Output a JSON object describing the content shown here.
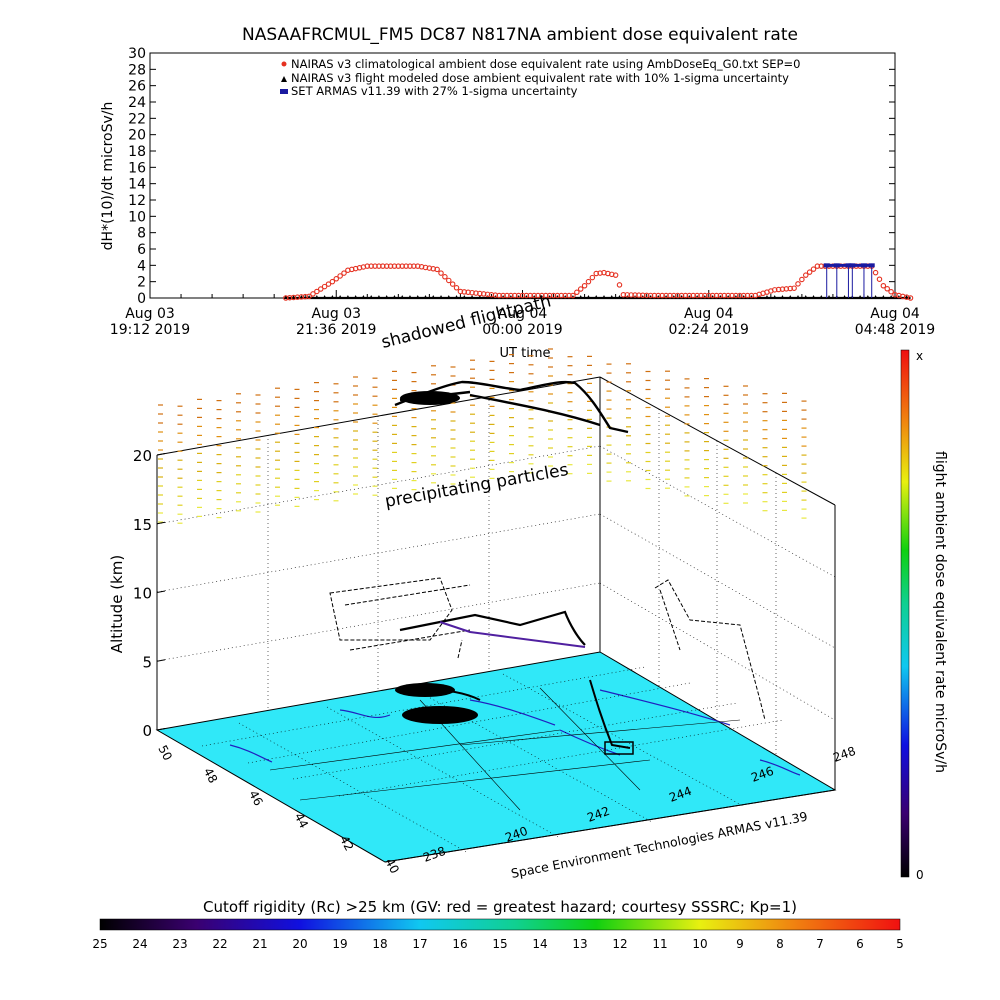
{
  "chart_data": [
    {
      "type": "line",
      "title": "NASAAFRCMUL_FM5 DC87 N817NA ambient dose equivalent rate",
      "ylabel": "dH*(10)/dt microSv/h",
      "xlabel": "UT time",
      "ylim": [
        0,
        30
      ],
      "yticks": [
        0,
        2,
        4,
        6,
        8,
        10,
        12,
        14,
        16,
        18,
        20,
        22,
        24,
        26,
        28,
        30
      ],
      "xticks": [
        {
          "line1": "Aug 03",
          "line2": "19:12 2019"
        },
        {
          "line1": "Aug 03",
          "line2": "21:36 2019"
        },
        {
          "line1": "Aug 04",
          "line2": "00:00 2019"
        },
        {
          "line1": "Aug 04",
          "line2": "02:24 2019"
        },
        {
          "line1": "Aug 04",
          "line2": "04:48 2019"
        }
      ],
      "legend_position": "top-right",
      "series": [
        {
          "name": "NAIRAS v3 climatological ambient dose equivalent rate using AmbDoseEq_G0.txt SEP=0",
          "marker": "circle",
          "color": "#e53020",
          "x_hours": [
            1.75,
            2.05,
            2.35,
            2.55,
            2.8,
            3.45,
            3.7,
            4.0,
            4.5,
            5.0,
            5.45,
            5.6,
            5.75,
            5.85,
            6.0,
            6.1,
            6.5,
            7.0,
            7.5,
            7.8,
            8.05,
            8.3,
            8.45,
            8.6,
            9.3,
            9.45,
            9.6,
            9.8
          ],
          "values": [
            0,
            0.2,
            2.0,
            3.4,
            3.9,
            3.9,
            3.5,
            0.8,
            0.3,
            0.3,
            0.3,
            1.5,
            3.0,
            3.1,
            2.8,
            0.4,
            0.3,
            0.3,
            0.3,
            0.3,
            1.0,
            1.2,
            2.8,
            3.9,
            3.9,
            1.5,
            0.4,
            0
          ]
        },
        {
          "name": "NAIRAS v3 flight modeled dose ambient equivalent rate with 10% 1-sigma uncertainty",
          "marker": "triangle",
          "color": "#000000",
          "x_hours": [
            1.75,
            9.8
          ],
          "values": [
            0,
            0
          ]
        },
        {
          "name": "SET ARMAS v11.39 with 27% 1-sigma uncertainty",
          "marker": "square",
          "color": "#1a1aa0",
          "x_hours": [
            8.72,
            8.85,
            9.0,
            9.05,
            9.2,
            9.3
          ],
          "values": [
            4.0,
            4.0,
            4.0,
            4.0,
            4.0,
            4.0
          ]
        }
      ]
    },
    {
      "type": "scatter",
      "zlabel": "Altitude (km)",
      "zticks": [
        0,
        5,
        10,
        15,
        20
      ],
      "lat_ticks": [
        50,
        48,
        46,
        44,
        42,
        40
      ],
      "lon_ticks": [
        238,
        240,
        242,
        244,
        246,
        248
      ],
      "credit": "Space Environment Technologies ARMAS v11.39",
      "annotations": [
        "shadowed flightpath",
        "precipitating particles"
      ],
      "colorbar": {
        "label": "flight ambient dose equivalent rate microSv/h",
        "top_label": "x",
        "bottom_label": "0"
      },
      "rigidity_bar": {
        "label": "Cutoff rigidity (Rc) >25 km (GV: red = greatest hazard; courtesy SSSRC; Kp=1)",
        "ticks": [
          25,
          24,
          23,
          22,
          21,
          20,
          19,
          18,
          17,
          16,
          15,
          14,
          13,
          12,
          11,
          10,
          9,
          8,
          7,
          6,
          5
        ]
      }
    }
  ]
}
